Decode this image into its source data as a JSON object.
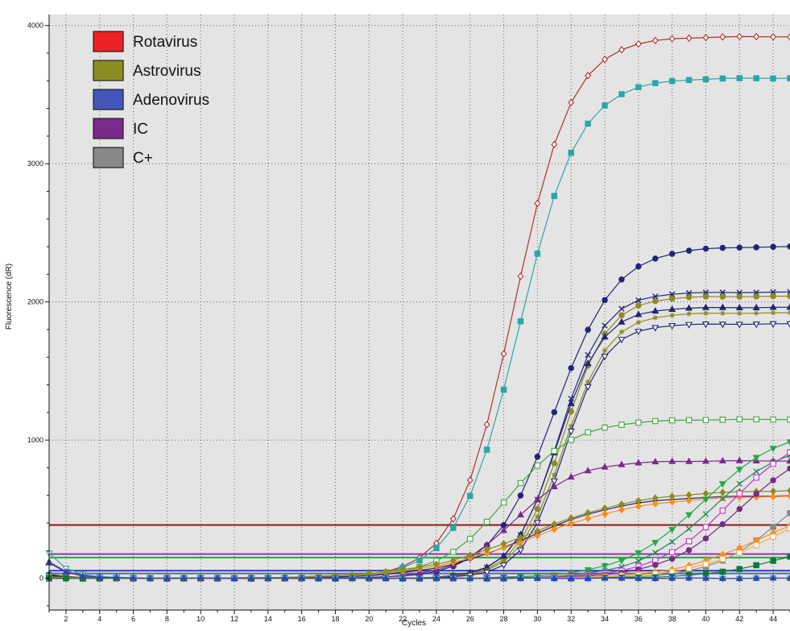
{
  "chart_data": {
    "type": "line",
    "xlabel": "Cycles",
    "ylabel": "Fluorescence (dR)",
    "xlim": [
      1,
      45
    ],
    "ylim": [
      -230,
      4080
    ],
    "x_ticks": [
      2,
      4,
      6,
      8,
      10,
      12,
      14,
      16,
      18,
      20,
      22,
      24,
      26,
      28,
      30,
      32,
      34,
      36,
      38,
      40,
      42,
      44
    ],
    "y_ticks": [
      0,
      1000,
      2000,
      3000,
      4000
    ],
    "grid": true,
    "legend_position": "top-left",
    "legend": [
      {
        "label": "Rotavirus",
        "color": "#ee2222"
      },
      {
        "label": "Astrovirus",
        "color": "#8c8c22"
      },
      {
        "label": "Adenovirus",
        "color": "#4455bb"
      },
      {
        "label": "IC",
        "color": "#7a2a8a"
      },
      {
        "label": "C+",
        "color": "#888888"
      }
    ],
    "thresholds": [
      {
        "y": 385,
        "color": "#8b1a1a"
      },
      {
        "y": 175,
        "color": "#9a30b0"
      },
      {
        "y": 150,
        "color": "#22aa44"
      },
      {
        "y": 55,
        "color": "#3344aa"
      },
      {
        "y": 35,
        "color": "#5566bb"
      }
    ],
    "series": [
      {
        "color": "#b03030",
        "marker": "diamond-open",
        "start": 30,
        "ct": 28.6,
        "plateau": 3920,
        "k": 0.58
      },
      {
        "color": "#2aa6a6",
        "marker": "square",
        "start": 25,
        "ct": 28.9,
        "plateau": 3620,
        "k": 0.56
      },
      {
        "color": "#23237a",
        "marker": "circle",
        "start": 20,
        "ct": 31.0,
        "plateau": 2400,
        "k": 0.55
      },
      {
        "color": "#23237a",
        "marker": "x",
        "start": 15,
        "ct": 31.3,
        "plateau": 2070,
        "k": 0.75
      },
      {
        "color": "#8c8c22",
        "marker": "circle",
        "start": 10,
        "ct": 31.5,
        "plateau": 2040,
        "k": 0.75
      },
      {
        "color": "#23237a",
        "marker": "triangle",
        "start": 25,
        "ct": 31.2,
        "plateau": 1960,
        "k": 0.75
      },
      {
        "color": "#8c8c22",
        "marker": "star",
        "start": 10,
        "ct": 31.6,
        "plateau": 1920,
        "k": 0.75
      },
      {
        "color": "#23237a",
        "marker": "tri-down-open",
        "start": 15,
        "ct": 31.6,
        "plateau": 1840,
        "k": 0.8
      },
      {
        "color": "#3fa83f",
        "marker": "square-open",
        "start": 15,
        "ct": 28.2,
        "plateau": 1150,
        "k": 0.5
      },
      {
        "color": "#7a2a8a",
        "marker": "triangle",
        "start": 120,
        "ct": 28.7,
        "plateau": 850,
        "k": 0.55
      },
      {
        "color": "#23237a",
        "marker": "plus",
        "start": 15,
        "ct": 29.5,
        "plateau": 600,
        "k": 0.35
      },
      {
        "color": "#ff8c1a",
        "marker": "diamond",
        "start": 10,
        "ct": 29.8,
        "plateau": 600,
        "k": 0.3
      },
      {
        "color": "#8c8c22",
        "marker": "diamond",
        "start": 10,
        "ct": 29.5,
        "plateau": 640,
        "k": 0.3
      },
      {
        "color": "#22aa44",
        "marker": "tri-down",
        "start": 0,
        "ct": 39.8,
        "plateau": 1100,
        "k": 0.42
      },
      {
        "color": "#1a8a5a",
        "marker": "x",
        "start": 0,
        "ct": 40.3,
        "plateau": 1000,
        "k": 0.45
      },
      {
        "color": "#cc2ccc",
        "marker": "square-open",
        "start": 0,
        "ct": 41.5,
        "plateau": 1100,
        "k": 0.45
      },
      {
        "color": "#7a2a8a",
        "marker": "circle",
        "start": 0,
        "ct": 42.0,
        "plateau": 1000,
        "k": 0.45
      },
      {
        "color": "#888888",
        "marker": "square",
        "start": 0,
        "ct": 44.3,
        "plateau": 800,
        "k": 0.5
      },
      {
        "color": "#ff8c1a",
        "marker": "diamond",
        "start": 0,
        "ct": 43.0,
        "plateau": 550,
        "k": 0.4
      },
      {
        "color": "#ffaa44",
        "marker": "square-open",
        "start": 0,
        "ct": 44.0,
        "plateau": 600,
        "k": 0.4
      },
      {
        "color": "#0a7a3a",
        "marker": "square",
        "start": 0,
        "ct": 44.5,
        "plateau": 280,
        "k": 0.45
      },
      {
        "color": "#2aa6a6",
        "marker": "tri-down-open",
        "start": 180,
        "ct": 45,
        "plateau": 0,
        "k": 0.5
      },
      {
        "color": "#3344aa",
        "marker": "triangle",
        "start": 110,
        "ct": 45,
        "plateau": 0,
        "k": 0.5
      }
    ]
  }
}
